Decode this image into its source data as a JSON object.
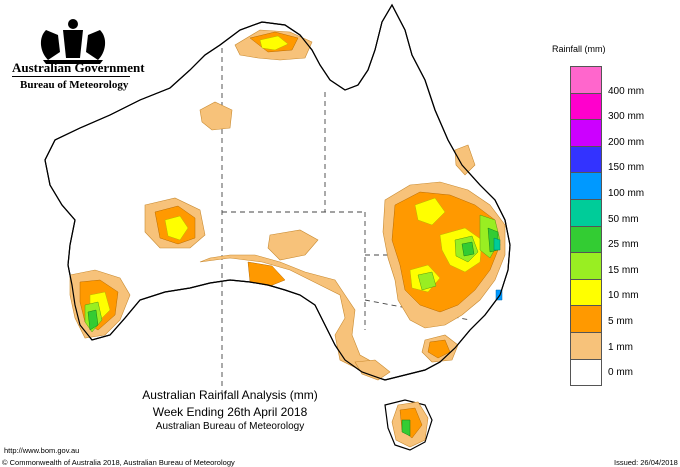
{
  "header": {
    "government": "Australian Government",
    "bureau": "Bureau of Meteorology"
  },
  "legend": {
    "title": "Rainfall (mm)",
    "items": [
      {
        "label": "",
        "color": "#ff66cc"
      },
      {
        "label": "400 mm",
        "color": "#ff00cc"
      },
      {
        "label": "300 mm",
        "color": "#cc00ff"
      },
      {
        "label": "200 mm",
        "color": "#3333ff"
      },
      {
        "label": "150 mm",
        "color": "#0099ff"
      },
      {
        "label": "100 mm",
        "color": "#00cc99"
      },
      {
        "label": "50 mm",
        "color": "#33cc33"
      },
      {
        "label": "25 mm",
        "color": "#99ee22"
      },
      {
        "label": "15 mm",
        "color": "#ffff00"
      },
      {
        "label": "10 mm",
        "color": "#ff9900"
      },
      {
        "label": "5 mm",
        "color": "#f7c27a"
      },
      {
        "label": "1 mm",
        "color": "#ffffff"
      },
      {
        "label": "0 mm",
        "color": ""
      }
    ]
  },
  "caption": {
    "line1": "Australian Rainfall Analysis (mm)",
    "line2": "Week Ending 26th April 2018",
    "line3": "Australian Bureau of Meteorology"
  },
  "footer": {
    "url": "http://www.bom.gov.au",
    "copyright": "© Commonwealth of Australia 2018, Australian Bureau of Meteorology",
    "issued": "Issued: 26/04/2018"
  }
}
